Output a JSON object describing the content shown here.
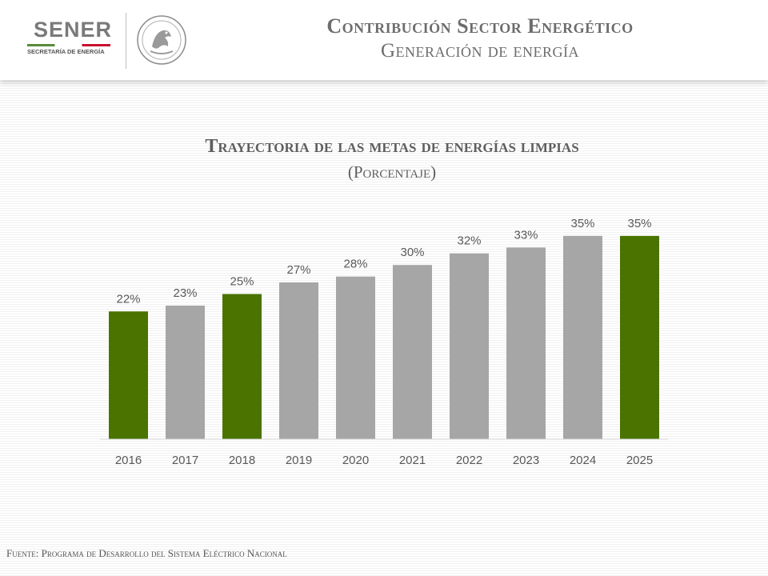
{
  "header": {
    "logo_text": "SENER",
    "logo_subtext": "SECRETARÍA DE ENERGÍA",
    "title": "Contribución Sector Energético",
    "subtitle": "Generación de energía"
  },
  "colors": {
    "highlight_bar": "#4a7300",
    "regular_bar": "#a6a6a6",
    "axis": "#d9d9d9",
    "label_text": "#595959"
  },
  "chart_data": {
    "type": "bar",
    "title": "Trayectoria de las metas de energías limpias",
    "subtitle": "(Porcentaje)",
    "categories": [
      "2016",
      "2017",
      "2018",
      "2019",
      "2020",
      "2021",
      "2022",
      "2023",
      "2024",
      "2025"
    ],
    "values": [
      22,
      23,
      25,
      27,
      28,
      30,
      32,
      33,
      35,
      35
    ],
    "data_labels": [
      "22%",
      "23%",
      "25%",
      "27%",
      "28%",
      "30%",
      "32%",
      "33%",
      "35%",
      "35%"
    ],
    "highlighted_categories": [
      "2016",
      "2018",
      "2025"
    ],
    "ylim": [
      0,
      36.5
    ],
    "grid": false,
    "legend": "none"
  },
  "footer": {
    "source": "Fuente: Programa de Desarrollo del Sistema Eléctrico Nacional"
  }
}
